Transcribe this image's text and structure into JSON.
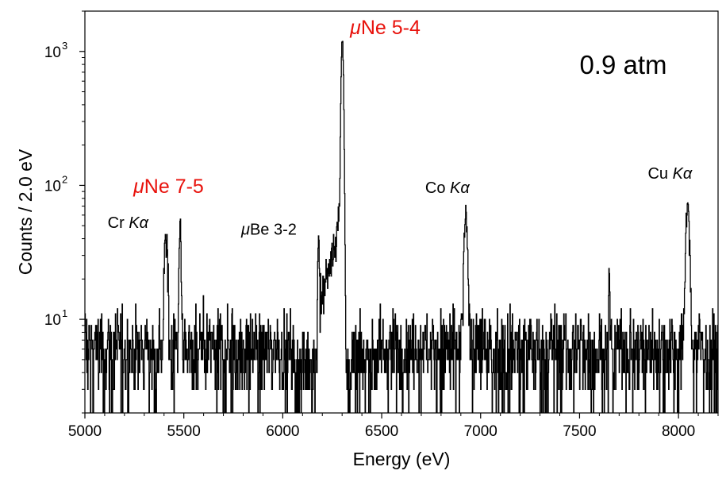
{
  "chart_data": {
    "type": "line",
    "xlabel": "Energy (eV)",
    "ylabel": "Counts / 2.0 eV",
    "xlim": [
      5000,
      8200
    ],
    "ylim": [
      2,
      2000
    ],
    "yscale": "log",
    "grid": false,
    "x_ticks": [
      5000,
      5500,
      6000,
      6500,
      7000,
      7500,
      8000
    ],
    "x_tick_labels": [
      "5000",
      "5500",
      "6000",
      "6500",
      "7000",
      "7500",
      "8000"
    ],
    "y_ticks": [
      {
        "value": 10,
        "base": "10",
        "exp": "1"
      },
      {
        "value": 100,
        "base": "10",
        "exp": "2"
      },
      {
        "value": 1000,
        "base": "10",
        "exp": "3"
      }
    ],
    "bin_width": 2.0,
    "baseline_counts": 6,
    "peaks": [
      {
        "center": 5405,
        "height": 36,
        "sigma": 4
      },
      {
        "center": 5415,
        "height": 30,
        "sigma": 4
      },
      {
        "center": 5480,
        "height": 53,
        "sigma": 4
      },
      {
        "center": 6180,
        "height": 35,
        "sigma": 4
      },
      {
        "center": 6300,
        "height": 1250,
        "sigma": 5
      },
      {
        "center": 6925,
        "height": 55,
        "sigma": 8
      },
      {
        "center": 7650,
        "height": 15,
        "sigma": 3
      },
      {
        "center": 8045,
        "height": 66,
        "sigma": 8
      }
    ],
    "shoulder": {
      "from": 6190,
      "to": 6296,
      "start": 10,
      "end": 60
    },
    "series": [
      {
        "color": "#000000"
      }
    ],
    "annotations": [
      {
        "id": "mune54",
        "mu": "μ",
        "text": "Ne 5-4",
        "italic_part": "",
        "color": "#e8120c",
        "x": 6340,
        "y": 1350,
        "style": "red"
      },
      {
        "id": "atm",
        "mu": "",
        "text": "0.9 atm",
        "italic_part": "",
        "color": "#000000",
        "x": 7500,
        "y": 680,
        "style": "big"
      },
      {
        "id": "mune75",
        "mu": "μ",
        "text": "Ne 7-5",
        "italic_part": "",
        "color": "#e8120c",
        "x": 5245,
        "y": 88,
        "style": "red"
      },
      {
        "id": "crka",
        "mu": "",
        "text": "Cr ",
        "italic_part": "Kα",
        "color": "#000000",
        "x": 5115,
        "y": 48,
        "style": "normal"
      },
      {
        "id": "mube32",
        "mu": "μ",
        "text": "Be 3-2",
        "italic_part": "",
        "color": "#000000",
        "x": 5790,
        "y": 43,
        "style": "normal"
      },
      {
        "id": "coka",
        "mu": "",
        "text": "Co ",
        "italic_part": "Kα",
        "color": "#000000",
        "x": 6720,
        "y": 88,
        "style": "normal"
      },
      {
        "id": "cuka",
        "mu": "",
        "text": "Cu ",
        "italic_part": "Kα",
        "color": "#000000",
        "x": 7845,
        "y": 112,
        "style": "normal"
      }
    ]
  }
}
